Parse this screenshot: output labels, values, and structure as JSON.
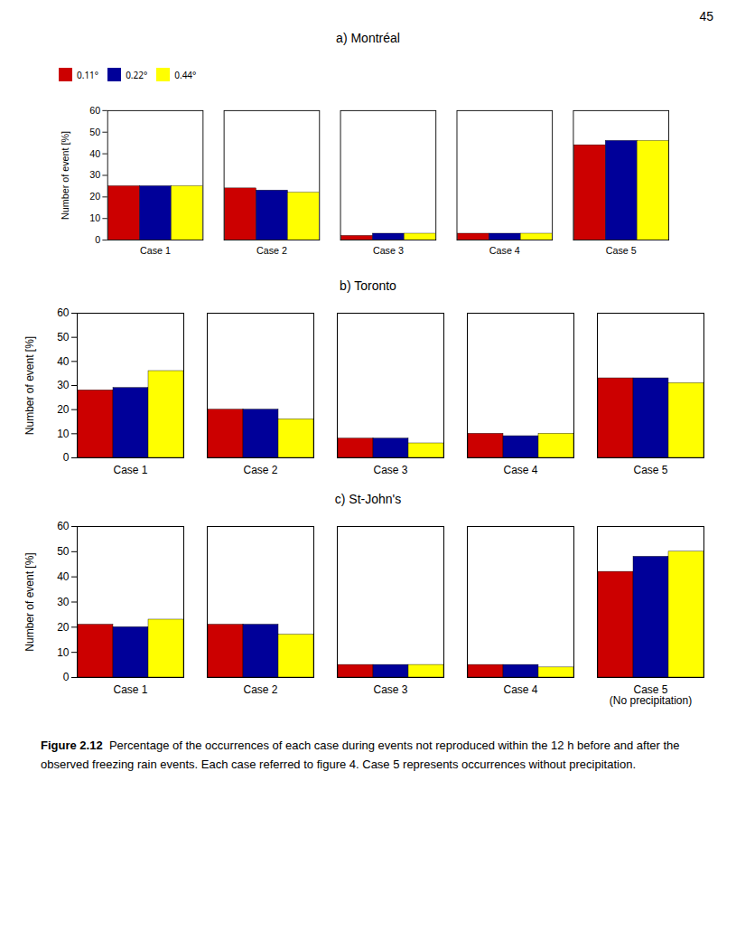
{
  "chart_data": [
    {
      "type": "bar",
      "title": "a) Montréal",
      "categories": [
        "Case 1",
        "Case 2",
        "Case 3",
        "Case 4",
        "Case 5"
      ],
      "series": [
        {
          "name": "0.11°",
          "color": "#cc0000",
          "values": [
            25,
            24,
            2,
            3,
            44
          ]
        },
        {
          "name": "0.22°",
          "color": "#000099",
          "values": [
            25,
            23,
            3,
            3,
            46
          ]
        },
        {
          "name": "0.44°",
          "color": "#ffff00",
          "values": [
            25,
            22,
            3,
            3,
            46
          ]
        }
      ],
      "ylabel": "Number of event [%]",
      "ylim": [
        0,
        60
      ],
      "yticks": [
        0,
        10,
        20,
        30,
        40,
        50,
        60
      ],
      "legend": "upper left"
    },
    {
      "type": "bar",
      "title": "b) Toronto",
      "categories": [
        "Case 1",
        "Case 2",
        "Case 3",
        "Case 4",
        "Case 5"
      ],
      "series": [
        {
          "name": "0.11°",
          "color": "#cc0000",
          "values": [
            28,
            20,
            8,
            10,
            33
          ]
        },
        {
          "name": "0.22°",
          "color": "#000099",
          "values": [
            29,
            20,
            8,
            9,
            33
          ]
        },
        {
          "name": "0.44°",
          "color": "#ffff00",
          "values": [
            36,
            16,
            6,
            10,
            31
          ]
        }
      ],
      "ylabel": "Number of event [%]",
      "ylim": [
        0,
        60
      ],
      "yticks": [
        0,
        10,
        20,
        30,
        40,
        50,
        60
      ]
    },
    {
      "type": "bar",
      "title": "c) St-John's",
      "categories": [
        "Case 1",
        "Case 2",
        "Case 3",
        "Case 4",
        "Case 5\n(No precipitation)"
      ],
      "series": [
        {
          "name": "0.11°",
          "color": "#cc0000",
          "values": [
            21,
            21,
            5,
            5,
            42
          ]
        },
        {
          "name": "0.22°",
          "color": "#000099",
          "values": [
            20,
            21,
            5,
            5,
            48
          ]
        },
        {
          "name": "0.44°",
          "color": "#ffff00",
          "values": [
            23,
            17,
            5,
            4,
            50
          ]
        }
      ],
      "ylabel": "Number of event [%]",
      "ylim": [
        0,
        60
      ],
      "yticks": [
        0,
        10,
        20,
        30,
        40,
        50,
        60
      ]
    }
  ],
  "page_number": "45",
  "caption_title": "Figure 2.12",
  "caption": "Percentage of the occurrences of each case during events not reproduced within the 12 h before and after the observed freezing rain events. Each case referred to figure 4. Case 5 represents occurrences without precipitation."
}
